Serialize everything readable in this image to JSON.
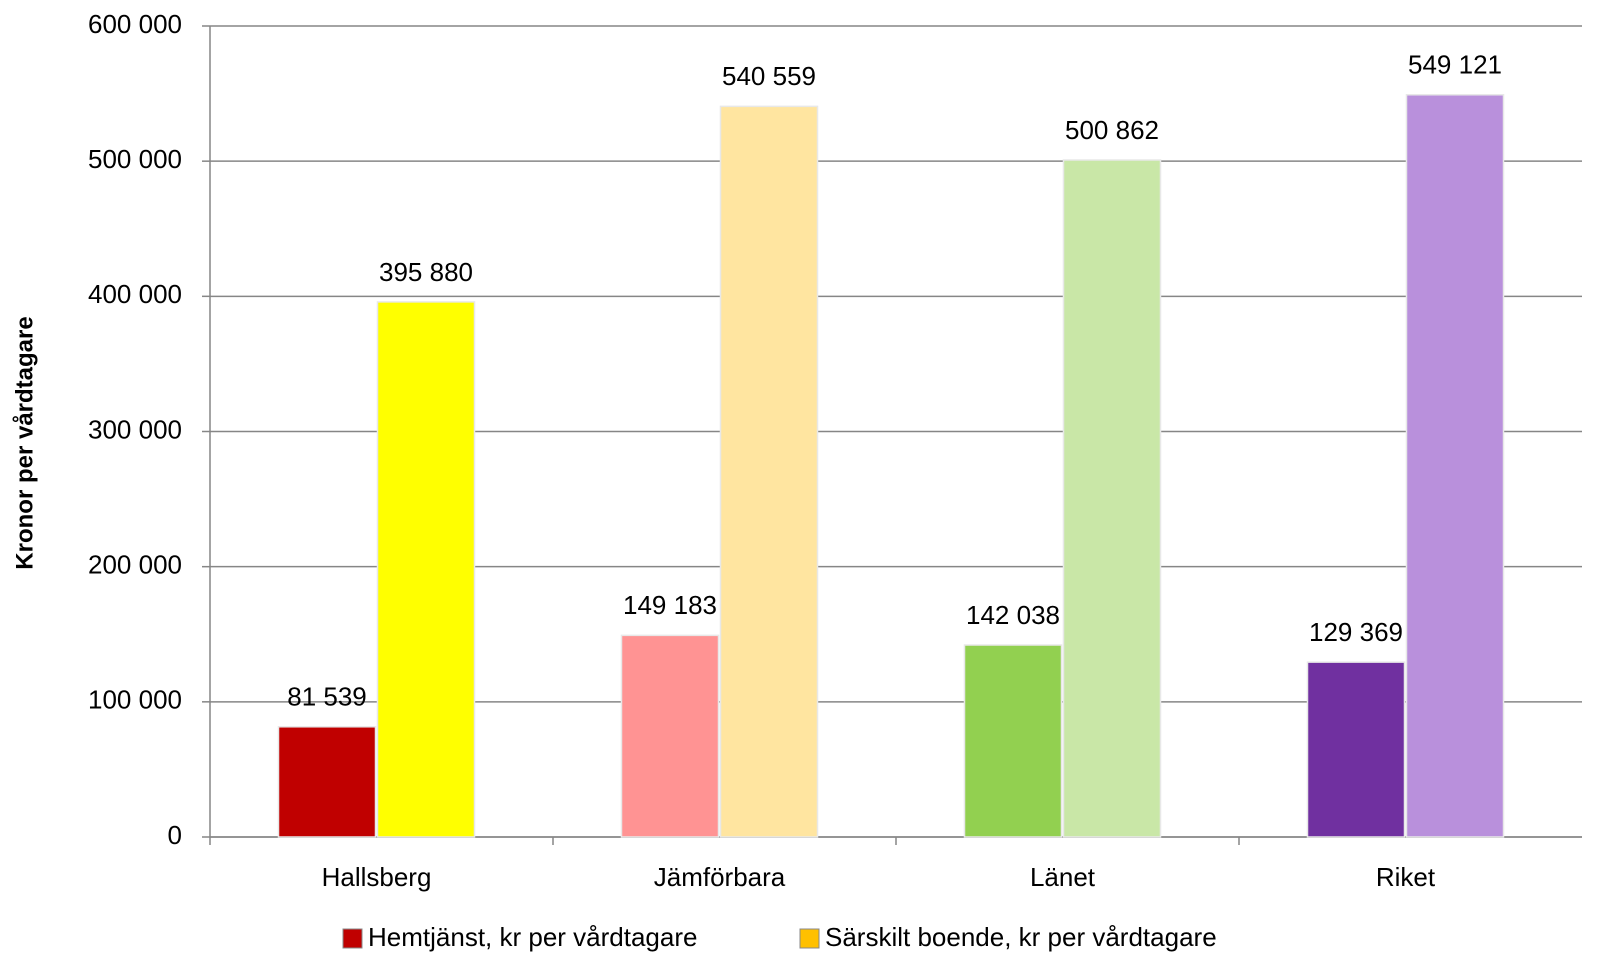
{
  "chart_data": {
    "type": "bar",
    "y_label": "Kronor per vårdtagare",
    "categories": [
      "Hallsberg",
      "Jämförbara",
      "Länet",
      "Riket"
    ],
    "series": [
      {
        "name": "Hemtjänst, kr per vårdtagare",
        "color": "#c00000",
        "colors": [
          "#c00000",
          "#ff9393",
          "#92d050",
          "#7030a0"
        ],
        "values": [
          81539,
          149183,
          142038,
          129369
        ],
        "value_labels": [
          "81 539",
          "149 183",
          "142 038",
          "129 369"
        ]
      },
      {
        "name": "Särskilt boende, kr per vårdtagare",
        "color": "#ffc000",
        "colors": [
          "#ffff00",
          "#ffe5a0",
          "#c9e7a7",
          "#b990dc"
        ],
        "values": [
          395880,
          540559,
          500862,
          549121
        ],
        "value_labels": [
          "395 880",
          "540 559",
          "500 862",
          "549 121"
        ]
      }
    ],
    "ylim": [
      0,
      600000
    ],
    "yticks": [
      0,
      {
        "value": 100000,
        "label": "100 000"
      },
      {
        "value": 200000,
        "label": "200 000"
      },
      {
        "value": 300000,
        "label": "300 000"
      },
      {
        "value": 400000,
        "label": "400 000"
      },
      {
        "value": 500000,
        "label": "500 000"
      },
      {
        "value": 600000,
        "label": "600 000"
      }
    ],
    "grid": true,
    "legend": "bottom"
  }
}
